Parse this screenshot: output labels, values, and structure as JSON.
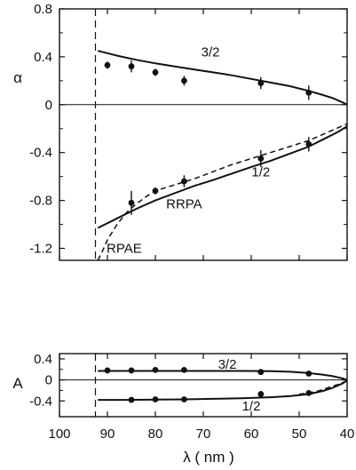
{
  "chart_data": [
    {
      "panel": "top",
      "type": "line",
      "ylabel": "α",
      "xlim": [
        100,
        40
      ],
      "ylim": [
        -1.3,
        0.8
      ],
      "x_reversed": true,
      "yticks": [
        0.8,
        0.4,
        0,
        -0.4,
        -0.8,
        -1.2
      ],
      "ytick_labels": [
        "0.8",
        "0.4",
        "0",
        "-0.4",
        "-0.8",
        "-1.2"
      ],
      "threshold_x": 92.5,
      "reference_line_y": 0,
      "series": [
        {
          "name": "3/2",
          "style": "solid",
          "x": [
            92,
            88,
            84,
            80,
            76,
            72,
            68,
            64,
            60,
            56,
            52,
            48,
            45,
            43,
            41,
            40
          ],
          "y": [
            0.45,
            0.41,
            0.375,
            0.345,
            0.32,
            0.295,
            0.27,
            0.245,
            0.215,
            0.185,
            0.155,
            0.115,
            0.08,
            0.055,
            0.02,
            0.0
          ]
        },
        {
          "name": "1/2",
          "style": "solid",
          "x": [
            92,
            88,
            84,
            80,
            76,
            72,
            68,
            64,
            60,
            56,
            52,
            48,
            44,
            42,
            40
          ],
          "y": [
            -1.03,
            -0.95,
            -0.87,
            -0.8,
            -0.74,
            -0.68,
            -0.63,
            -0.575,
            -0.52,
            -0.47,
            -0.41,
            -0.35,
            -0.27,
            -0.23,
            -0.18
          ]
        },
        {
          "name": "RPAE",
          "style": "dashed",
          "x": [
            92,
            91,
            90,
            88,
            86,
            84,
            82,
            80,
            76,
            72,
            68,
            64,
            60,
            56,
            52,
            48,
            44,
            40
          ],
          "y": [
            -1.3,
            -1.22,
            -1.13,
            -1.0,
            -0.9,
            -0.83,
            -0.77,
            -0.72,
            -0.67,
            -0.62,
            -0.56,
            -0.5,
            -0.45,
            -0.4,
            -0.35,
            -0.3,
            -0.23,
            -0.16
          ]
        }
      ],
      "points": [
        {
          "group": "3/2",
          "x": [
            90,
            85,
            80,
            74,
            58,
            48
          ],
          "y": [
            0.33,
            0.32,
            0.27,
            0.2,
            0.18,
            0.1
          ],
          "err": [
            0.03,
            0.05,
            0.03,
            0.04,
            0.05,
            0.06
          ]
        },
        {
          "group": "1/2",
          "x": [
            85,
            80,
            74,
            58,
            48
          ],
          "y": [
            -0.82,
            -0.72,
            -0.64,
            -0.45,
            -0.33
          ],
          "err": [
            0.1,
            0.03,
            0.05,
            0.07,
            0.06
          ]
        }
      ],
      "annotations": [
        {
          "text": "3/2",
          "x": 68.5,
          "y": 0.44
        },
        {
          "text": "1/2",
          "x": 58,
          "y": -0.56
        },
        {
          "text": "RRPA",
          "x": 74,
          "y": -0.83
        },
        {
          "text": "RPAE",
          "x": 86.5,
          "y": -1.2
        }
      ]
    },
    {
      "panel": "bottom",
      "type": "line",
      "ylabel": "A",
      "xlabel": "λ  ( nm )",
      "xlim": [
        100,
        40
      ],
      "ylim": [
        -0.7,
        0.5
      ],
      "x_reversed": true,
      "xticks": [
        100,
        90,
        80,
        70,
        60,
        50,
        40
      ],
      "xtick_labels": [
        "100",
        "90",
        "80",
        "70",
        "60",
        "50",
        "40"
      ],
      "yticks": [
        0.4,
        0,
        -0.4
      ],
      "ytick_labels": [
        "0.4",
        "0",
        "-0.4"
      ],
      "threshold_x": 92.5,
      "reference_line_y": 0,
      "series": [
        {
          "name": "3/2",
          "style": "solid",
          "x": [
            92,
            86,
            80,
            74,
            68,
            62,
            56,
            52,
            48,
            45,
            43,
            41,
            40
          ],
          "y": [
            0.17,
            0.17,
            0.17,
            0.17,
            0.17,
            0.17,
            0.165,
            0.155,
            0.13,
            0.1,
            0.07,
            0.03,
            0.0
          ]
        },
        {
          "name": "1/2",
          "style": "solid",
          "x": [
            92,
            86,
            80,
            74,
            68,
            62,
            56,
            52,
            48,
            45,
            43,
            41,
            40
          ],
          "y": [
            -0.38,
            -0.38,
            -0.375,
            -0.37,
            -0.36,
            -0.35,
            -0.33,
            -0.31,
            -0.27,
            -0.21,
            -0.15,
            -0.07,
            -0.01
          ]
        },
        {
          "name": "RPAE",
          "style": "dashed",
          "x": [
            50,
            48,
            46,
            44,
            42,
            40
          ],
          "y": [
            -0.27,
            -0.25,
            -0.21,
            -0.15,
            -0.09,
            -0.02
          ]
        }
      ],
      "points": [
        {
          "group": "3/2",
          "x": [
            90,
            85,
            80,
            74,
            58,
            48
          ],
          "y": [
            0.18,
            0.18,
            0.19,
            0.19,
            0.15,
            0.12
          ],
          "err": [
            0,
            0,
            0,
            0,
            0.03,
            0.03
          ]
        },
        {
          "group": "1/2",
          "x": [
            85,
            80,
            74,
            58,
            48
          ],
          "y": [
            -0.38,
            -0.37,
            -0.37,
            -0.27,
            -0.25
          ],
          "err": [
            0,
            0,
            0,
            0.06,
            0
          ]
        }
      ],
      "annotations": [
        {
          "text": "3/2",
          "x": 65,
          "y": 0.3
        },
        {
          "text": "1/2",
          "x": 60,
          "y": -0.5
        }
      ]
    }
  ]
}
